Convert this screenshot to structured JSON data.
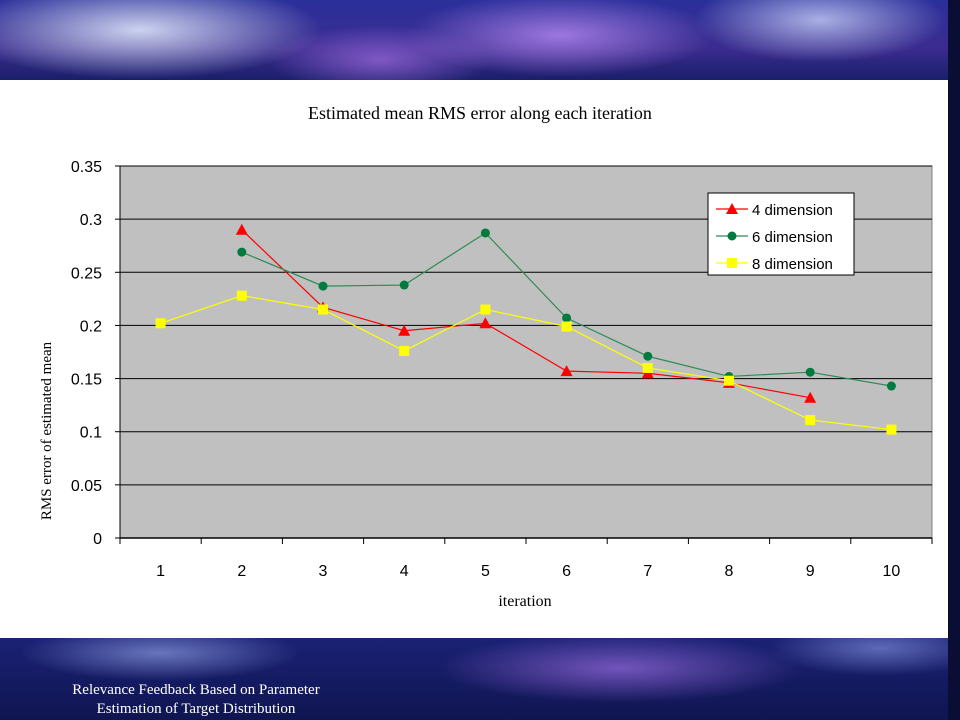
{
  "chart_data": {
    "type": "line",
    "title": "Estimated mean RMS error along each iteration",
    "xlabel": "iteration",
    "ylabel": "RMS error of estimated mean",
    "categories": [
      "1",
      "2",
      "3",
      "4",
      "5",
      "6",
      "7",
      "8",
      "9",
      "10"
    ],
    "ylim": [
      0,
      0.35
    ],
    "yticks": [
      "0",
      "0.05",
      "0.1",
      "0.15",
      "0.2",
      "0.25",
      "0.3",
      "0.35"
    ],
    "grid": true,
    "legend_position": "top-right",
    "plot_background": "#c0c0c0",
    "series": [
      {
        "name": "4 dimension",
        "color": "#ff0000",
        "line_color": "#ff0000",
        "marker": "triangle",
        "values": [
          null,
          0.29,
          0.217,
          0.195,
          0.202,
          0.157,
          0.155,
          0.146,
          0.132,
          null
        ]
      },
      {
        "name": "6 dimension",
        "color": "#007a3d",
        "line_color": "#2e8b57",
        "marker": "circle",
        "values": [
          null,
          0.269,
          0.237,
          0.238,
          0.287,
          0.207,
          0.171,
          0.152,
          0.156,
          0.143
        ]
      },
      {
        "name": "8 dimension",
        "color": "#ffff00",
        "line_color": "#ffff00",
        "marker": "square",
        "values": [
          0.202,
          0.228,
          0.215,
          0.176,
          0.215,
          0.199,
          0.16,
          0.148,
          0.111,
          0.102
        ]
      }
    ]
  },
  "footer": {
    "caption_line1": "Relevance Feedback Based on Parameter",
    "caption_line2": "Estimation of Target Distribution"
  }
}
